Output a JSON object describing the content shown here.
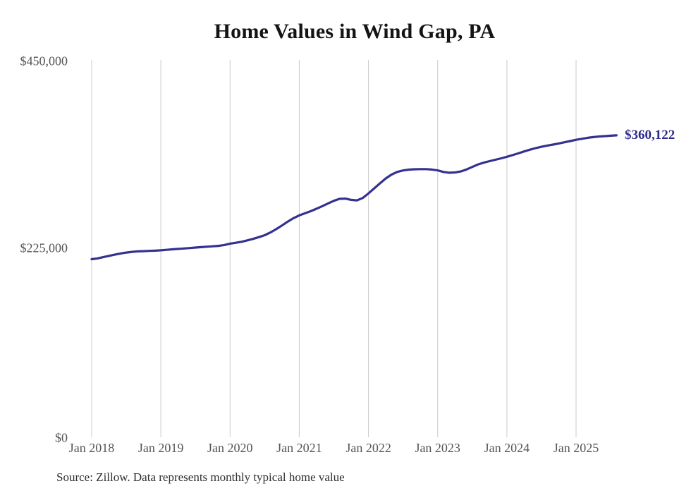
{
  "title": "Home Values in Wind Gap, PA",
  "source_note": "Source: Zillow. Data represents monthly typical home value",
  "end_label": "$360,122",
  "colors": {
    "line": "#343191",
    "end_label": "#2d2c8c",
    "grid": "#cbcbcb",
    "title_text": "#141414",
    "axis_text": "#555555",
    "source_text": "#303030",
    "background": "#ffffff"
  },
  "y_axis": {
    "ticks": [
      "$450,000",
      "$225,000",
      "$0"
    ],
    "min": 0,
    "max": 450000
  },
  "x_axis": {
    "ticks": [
      "Jan 2018",
      "Jan 2019",
      "Jan 2020",
      "Jan 2021",
      "Jan 2022",
      "Jan 2023",
      "Jan 2024",
      "Jan 2025"
    ]
  },
  "chart_data": {
    "type": "line",
    "title": "Home Values in Wind Gap, PA",
    "xlabel": "",
    "ylabel": "",
    "ylim": [
      0,
      450000
    ],
    "grid": "vertical-only",
    "legend": "none",
    "end_annotation": "$360,122",
    "series_name": "Typical home value (monthly)",
    "x": [
      "2018-01",
      "2018-02",
      "2018-03",
      "2018-04",
      "2018-05",
      "2018-06",
      "2018-07",
      "2018-08",
      "2018-09",
      "2018-10",
      "2018-11",
      "2018-12",
      "2019-01",
      "2019-02",
      "2019-03",
      "2019-04",
      "2019-05",
      "2019-06",
      "2019-07",
      "2019-08",
      "2019-09",
      "2019-10",
      "2019-11",
      "2019-12",
      "2020-01",
      "2020-02",
      "2020-03",
      "2020-04",
      "2020-05",
      "2020-06",
      "2020-07",
      "2020-08",
      "2020-09",
      "2020-10",
      "2020-11",
      "2020-12",
      "2021-01",
      "2021-02",
      "2021-03",
      "2021-04",
      "2021-05",
      "2021-06",
      "2021-07",
      "2021-08",
      "2021-09",
      "2021-10",
      "2021-11",
      "2021-12",
      "2022-01",
      "2022-02",
      "2022-03",
      "2022-04",
      "2022-05",
      "2022-06",
      "2022-07",
      "2022-08",
      "2022-09",
      "2022-10",
      "2022-11",
      "2022-12",
      "2023-01",
      "2023-02",
      "2023-03",
      "2023-04",
      "2023-05",
      "2023-06",
      "2023-07",
      "2023-08",
      "2023-09",
      "2023-10",
      "2023-11",
      "2023-12",
      "2024-01",
      "2024-02",
      "2024-03",
      "2024-04",
      "2024-05",
      "2024-06",
      "2024-07",
      "2024-08",
      "2024-09",
      "2024-10",
      "2024-11",
      "2024-12",
      "2025-01",
      "2025-02",
      "2025-03",
      "2025-04",
      "2025-05",
      "2025-06",
      "2025-07",
      "2025-08"
    ],
    "values": [
      212400,
      213300,
      214800,
      216300,
      217800,
      219200,
      220300,
      221100,
      221700,
      222000,
      222300,
      222600,
      223000,
      223600,
      224200,
      224700,
      225200,
      225700,
      226300,
      226800,
      227300,
      227800,
      228300,
      229300,
      231000,
      232000,
      233200,
      234800,
      236600,
      238700,
      241000,
      244300,
      248200,
      252600,
      257200,
      261300,
      264600,
      267100,
      269700,
      272600,
      275600,
      278900,
      282000,
      284400,
      284600,
      283100,
      282500,
      285400,
      290900,
      296900,
      302900,
      308700,
      313300,
      316500,
      318200,
      319200,
      319600,
      319800,
      319800,
      319300,
      318300,
      316400,
      315500,
      315800,
      317000,
      319400,
      322400,
      325400,
      327500,
      329300,
      331000,
      332700,
      334500,
      336500,
      338600,
      340900,
      343000,
      344900,
      346500,
      347900,
      349100,
      350400,
      351800,
      353300,
      354800,
      356000,
      357100,
      358000,
      358700,
      359200,
      359700,
      360122
    ]
  }
}
